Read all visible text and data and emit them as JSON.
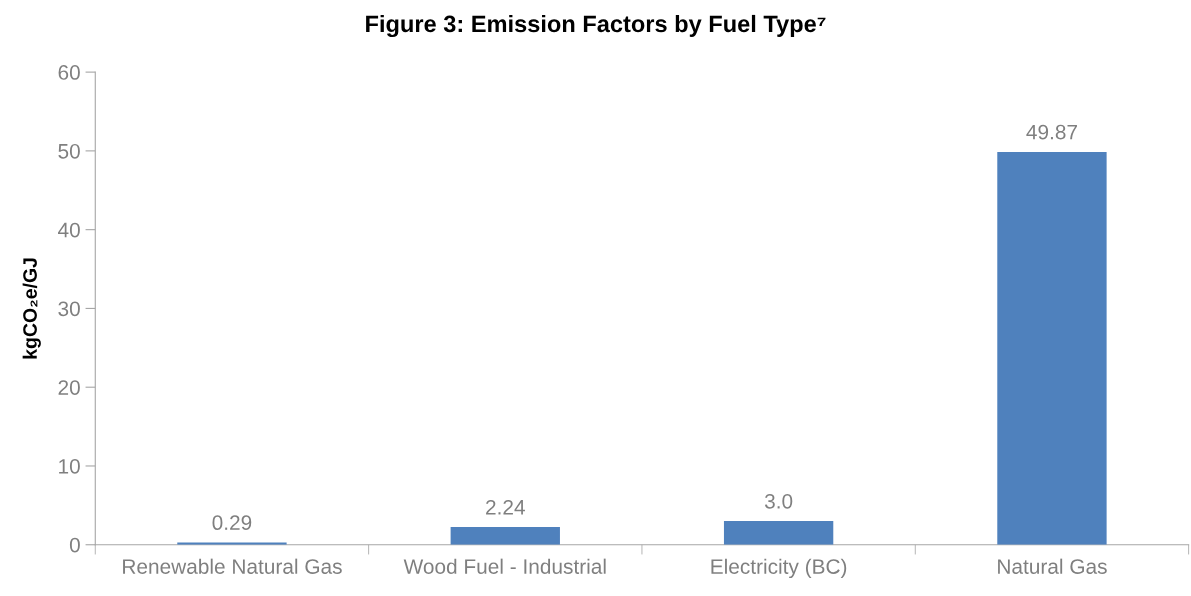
{
  "chart_data": {
    "type": "bar",
    "title": "Figure 3: Emission Factors by Fuel Type⁷",
    "ylabel": "kgCO₂e/GJ",
    "categories": [
      "Renewable Natural Gas",
      "Wood Fuel - Industrial",
      "Electricity (BC)",
      "Natural Gas"
    ],
    "values": [
      0.29,
      2.24,
      3.0,
      49.87
    ],
    "value_labels": [
      "0.29",
      "2.24",
      "3.0",
      "49.87"
    ],
    "color": "#4f81bd",
    "ylim": [
      0,
      60
    ],
    "yticks": [
      0,
      10,
      20,
      30,
      40,
      50,
      60
    ],
    "grid": false
  }
}
